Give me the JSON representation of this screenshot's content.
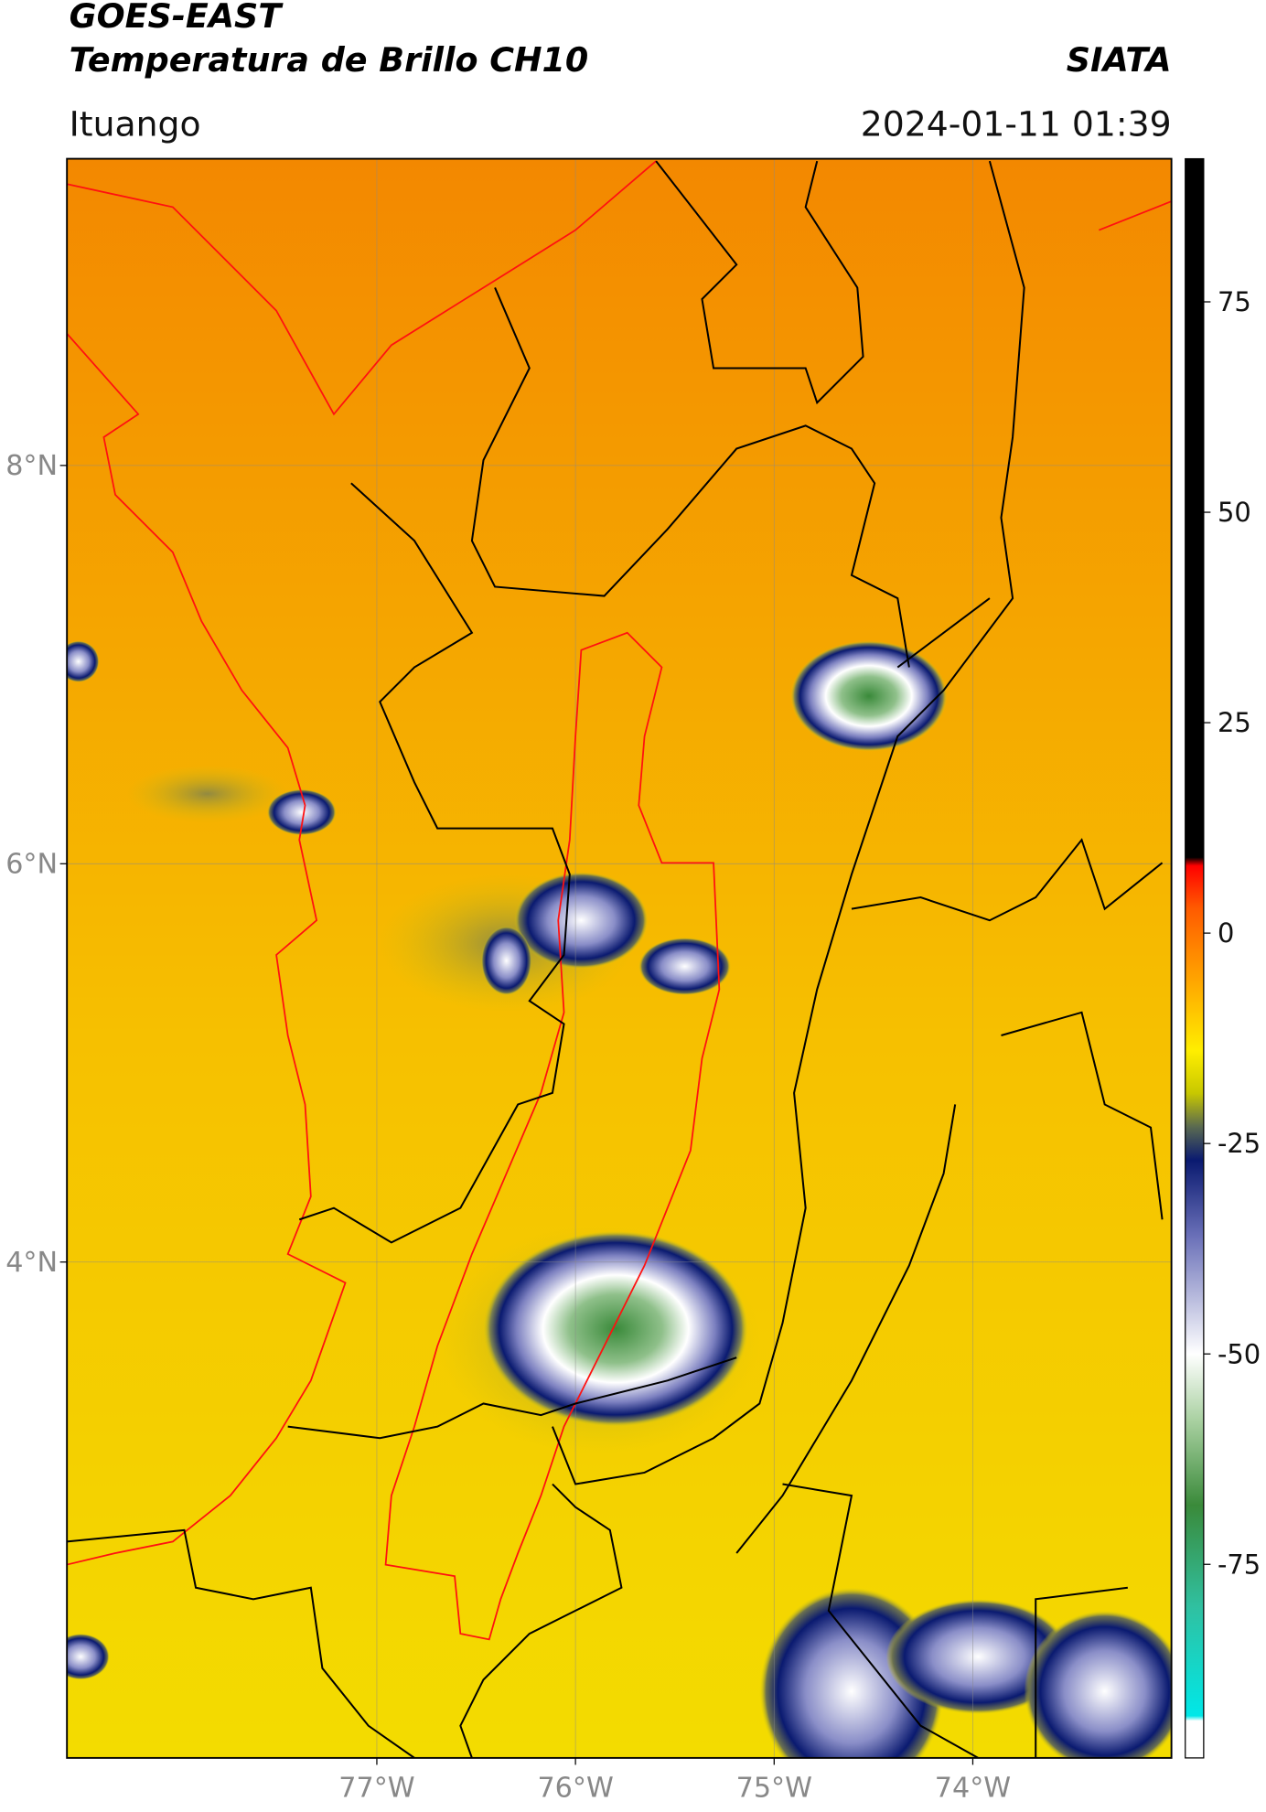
{
  "header": {
    "title": "GOES-EAST",
    "subtitle": "Temperatura de Brillo CH10",
    "source": "SIATA",
    "location": "Ituango",
    "datetime": "2024-01-11 01:39"
  },
  "map": {
    "lonlim": [
      -78.56,
      -73.0
    ],
    "latlim": [
      1.51,
      9.54
    ],
    "lat_ticks": [
      {
        "value": 8,
        "label": "8°N"
      },
      {
        "value": 6,
        "label": "6°N"
      },
      {
        "value": 4,
        "label": "4°N"
      }
    ],
    "lon_ticks": [
      {
        "value": -77,
        "label": "77°W"
      },
      {
        "value": -76,
        "label": "76°W"
      },
      {
        "value": -75,
        "label": "75°W"
      },
      {
        "value": -74,
        "label": "74°W"
      }
    ],
    "grid": true
  },
  "colorbar": {
    "lim": [
      -98,
      92
    ],
    "ticks": [
      75,
      50,
      25,
      0,
      -25,
      -50,
      -75
    ],
    "stops": [
      {
        "value": 92,
        "color": "#000000"
      },
      {
        "value": 9,
        "color": "#000000"
      },
      {
        "value": 8,
        "color": "#ff0000"
      },
      {
        "value": 3,
        "color": "#ff5a00"
      },
      {
        "value": -5,
        "color": "#ffa000"
      },
      {
        "value": -14,
        "color": "#ffee00"
      },
      {
        "value": -19,
        "color": "#c8c800"
      },
      {
        "value": -23,
        "color": "#5a6a50"
      },
      {
        "value": -27,
        "color": "#0a1a70"
      },
      {
        "value": -36,
        "color": "#6a70b8"
      },
      {
        "value": -50,
        "color": "#ffffff"
      },
      {
        "value": -58,
        "color": "#a8d0a0"
      },
      {
        "value": -68,
        "color": "#3a8a3a"
      },
      {
        "value": -80,
        "color": "#30c0a0"
      },
      {
        "value": -93,
        "color": "#00e8e8"
      },
      {
        "value": -93.6,
        "color": "#ffffff"
      },
      {
        "value": -98,
        "color": "#ffffff"
      }
    ]
  }
}
